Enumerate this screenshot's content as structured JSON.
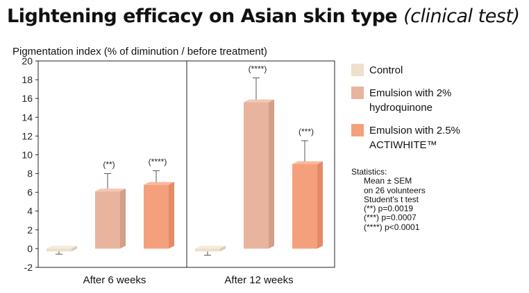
{
  "title": {
    "main": "Lightening efficacy on Asian skin type",
    "sub": "(clinical test)"
  },
  "chart_data": {
    "type": "bar",
    "ylabel": "Pigmentation index (% of diminution / before treatment)",
    "ylim": [
      -2,
      20
    ],
    "yticks": [
      -2,
      0,
      2,
      4,
      6,
      8,
      10,
      12,
      14,
      16,
      18,
      20
    ],
    "categories": [
      "After 6 weeks",
      "After 12 weeks"
    ],
    "series": [
      {
        "name": "Control",
        "color": "#ede0cc",
        "values": [
          -0.3,
          -0.3
        ],
        "errors": [
          0.3,
          0.4
        ],
        "significance": [
          "",
          ""
        ]
      },
      {
        "name": "Emulsion with 2% hydroquinone",
        "color": "#e8b49e",
        "values": [
          6.1,
          15.6
        ],
        "errors": [
          1.9,
          2.6
        ],
        "significance": [
          "(**)",
          "(****)"
        ]
      },
      {
        "name": "Emulsion with 2.5% ACTIWHITE™",
        "color": "#f5a07c",
        "values": [
          6.8,
          9.0
        ],
        "errors": [
          1.5,
          2.5
        ],
        "significance": [
          "(****)",
          "(***)"
        ]
      }
    ],
    "grid": false,
    "legend_position": "right"
  },
  "legend": [
    {
      "line1": "Control",
      "line2": ""
    },
    {
      "line1": "Emulsion with 2%",
      "line2": "hydroquinone"
    },
    {
      "line1": "Emulsion with 2.5%",
      "line2": "ACTIWHITE™"
    }
  ],
  "statistics": {
    "heading": "Statistics:",
    "lines": [
      "Mean ± SEM",
      "on 26 volunteers",
      "Student's t test",
      "(**) p=0.0019",
      "(***) p=0.0007",
      "(****) p<0.0001"
    ]
  }
}
